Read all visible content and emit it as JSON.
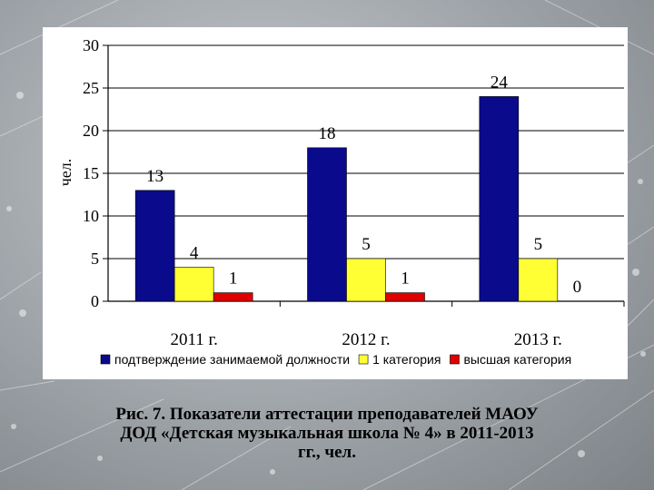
{
  "caption": {
    "line1": "Рис. 7. Показатели аттестации преподавателей  МАОУ",
    "line2": "ДОД «Детская музыкальная школа № 4» в 2011-2013",
    "line3": "гг., чел."
  },
  "colors": {
    "series": [
      "#0a0a8c",
      "#ffff33",
      "#e00000"
    ]
  },
  "chart_data": {
    "type": "bar",
    "ylabel": "чел.",
    "ylim": [
      0,
      30
    ],
    "yticks": [
      0,
      5,
      10,
      15,
      20,
      25,
      30
    ],
    "grid": true,
    "legend": "bottom",
    "categories": [
      "2011 г.",
      "2012 г.",
      "2013 г."
    ],
    "series": [
      {
        "name": "подтверждение занимаемой должности",
        "values": [
          13,
          18,
          24
        ]
      },
      {
        "name": "1 категория",
        "values": [
          4,
          5,
          5
        ]
      },
      {
        "name": "высшая категория",
        "values": [
          1,
          1,
          0
        ]
      }
    ]
  }
}
